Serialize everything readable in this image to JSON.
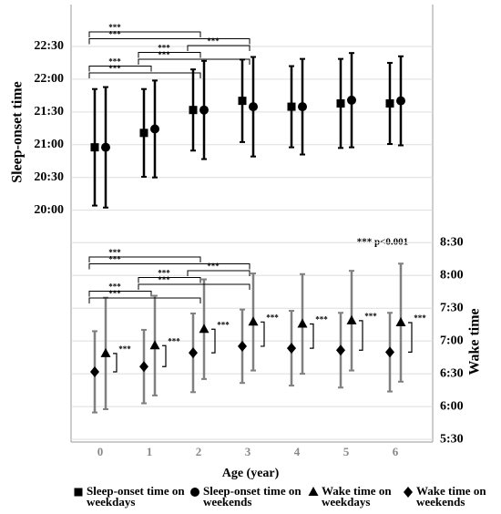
{
  "chart_data": {
    "type": "scatter",
    "x_label": "Age (year)",
    "y_label": "Sleep-onset time",
    "y2_label": "Wake time",
    "note": "*** p<0.001",
    "categories": [
      "0",
      "1",
      "2",
      "3",
      "4",
      "5",
      "6"
    ],
    "ylim": [
      16.46,
      23.14
    ],
    "yticks": [
      {
        "value": 20,
        "label": "20:00"
      },
      {
        "value": 20.5,
        "label": "20:30"
      },
      {
        "value": 21,
        "label": "21:00"
      },
      {
        "value": 21.5,
        "label": "21:30"
      },
      {
        "value": 22,
        "label": "22:00"
      },
      {
        "value": 22.5,
        "label": "22:30"
      }
    ],
    "y2lim": [
      5.46,
      12.13
    ],
    "y2ticks": [
      {
        "value": 5.5,
        "label": "5:30"
      },
      {
        "value": 6,
        "label": "6:00"
      },
      {
        "value": 6.5,
        "label": "6:30"
      },
      {
        "value": 7,
        "label": "7:00"
      },
      {
        "value": 7.5,
        "label": "7:30"
      },
      {
        "value": 8,
        "label": "8:00"
      },
      {
        "value": 8.5,
        "label": "8:30"
      }
    ],
    "grid": true,
    "legend": "bottom",
    "series": [
      {
        "name": "Sleep-onset time on weekdays",
        "marker": "square",
        "color": "#000000",
        "error_color": "#000000",
        "axis": "y",
        "values": [
          20.96,
          21.18,
          21.53,
          21.67,
          21.58,
          21.63,
          21.63
        ],
        "errors": [
          0.89,
          0.67,
          0.62,
          0.63,
          0.62,
          0.68,
          0.62
        ]
      },
      {
        "name": "Sleep-onset time on weekends",
        "marker": "circle",
        "color": "#000000",
        "error_color": "#000000",
        "axis": "y",
        "values": [
          20.96,
          21.24,
          21.53,
          21.58,
          21.58,
          21.68,
          21.67
        ],
        "errors": [
          0.92,
          0.74,
          0.75,
          0.76,
          0.73,
          0.72,
          0.68
        ]
      },
      {
        "name": "Wake time on weekdays",
        "marker": "triangle",
        "color": "#000000",
        "error_color": "#808080",
        "axis": "y2",
        "values": [
          6.81,
          6.93,
          7.18,
          7.29,
          7.26,
          7.31,
          7.28
        ],
        "errors": [
          0.85,
          0.76,
          0.76,
          0.74,
          0.76,
          0.76,
          0.9
        ]
      },
      {
        "name": "Wake time on weekends",
        "marker": "diamond",
        "color": "#000000",
        "error_color": "#808080",
        "axis": "y2",
        "values": [
          6.53,
          6.61,
          6.82,
          6.92,
          6.89,
          6.86,
          6.83
        ],
        "errors": [
          0.62,
          0.56,
          0.6,
          0.56,
          0.57,
          0.57,
          0.6
        ]
      }
    ],
    "sleep_brackets": [
      {
        "from": 0,
        "to": 2,
        "label": "***"
      },
      {
        "from": 0,
        "to": 3,
        "label": "***"
      },
      {
        "from": 2,
        "to": 3,
        "label": "***"
      },
      {
        "from": 1,
        "to": 2,
        "label": "***"
      },
      {
        "from": 1,
        "to": 3,
        "label": "***"
      },
      {
        "from": 0,
        "to": 1,
        "label": "***"
      },
      {
        "from": 0,
        "to": 2,
        "label": "***"
      }
    ],
    "wake_brackets": [
      {
        "from": 0,
        "to": 2,
        "label": "***"
      },
      {
        "from": 0,
        "to": 3,
        "label": "***"
      },
      {
        "from": 2,
        "to": 3,
        "label": "***"
      },
      {
        "from": 1,
        "to": 2,
        "label": "***"
      },
      {
        "from": 1,
        "to": 3,
        "label": "***"
      },
      {
        "from": 0,
        "to": 1,
        "label": "***"
      },
      {
        "from": 0,
        "to": 2,
        "label": "***"
      }
    ],
    "pair_labels": [
      "***",
      "***",
      "***",
      "***",
      "***",
      "***",
      "***"
    ]
  }
}
